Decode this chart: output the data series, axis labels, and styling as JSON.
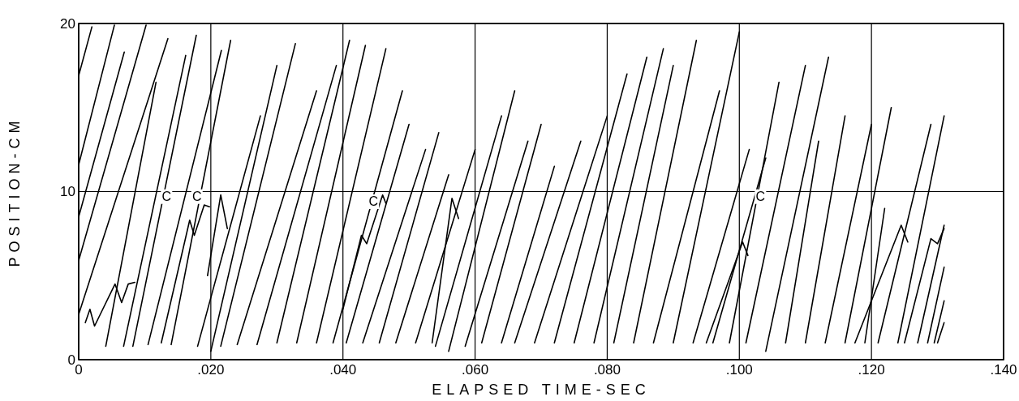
{
  "chart_data": {
    "type": "line",
    "xlabel": "ELAPSED TIME-SEC",
    "ylabel": "POSITION-CM",
    "xlim": [
      0,
      0.14
    ],
    "ylim": [
      0,
      20
    ],
    "xticks": [
      0,
      {
        "value": 0.02,
        "label": ".020"
      },
      {
        "value": 0.04,
        "label": ".040"
      },
      {
        "value": 0.06,
        "label": ".060"
      },
      {
        "value": 0.08,
        "label": ".080"
      },
      {
        "value": 0.1,
        "label": ".100"
      },
      {
        "value": 0.12,
        "label": ".120"
      },
      {
        "value": 0.14,
        "label": ".140"
      }
    ],
    "yticks": [
      0,
      10,
      20
    ],
    "grid": true,
    "marker": "none",
    "line_style": "solid",
    "annotations": [
      {
        "text": "C",
        "x": 0.0133,
        "y": 9.7
      },
      {
        "text": "C",
        "x": 0.0179,
        "y": 9.7
      },
      {
        "text": "C",
        "x": 0.0446,
        "y": 9.4
      },
      {
        "text": "C",
        "x": 0.1032,
        "y": 9.7
      }
    ],
    "series": [
      {
        "color": "#000000",
        "x": [
          0,
          0.002
        ],
        "values": [
          16.9,
          19.8
        ]
      },
      {
        "color": "#000000",
        "x": [
          0,
          0.0054
        ],
        "values": [
          11.6,
          19.9
        ]
      },
      {
        "color": "#000000",
        "x": [
          0,
          0.0069
        ],
        "values": [
          8.5,
          18.3
        ]
      },
      {
        "color": "#000000",
        "x": [
          0,
          0.0102
        ],
        "values": [
          5.9,
          19.9
        ]
      },
      {
        "color": "#000000",
        "x": [
          0,
          0.0135
        ],
        "values": [
          2.7,
          19.1
        ]
      },
      {
        "color": "#000000",
        "x": [
          0.0041,
          0.0117
        ],
        "values": [
          0.8,
          16.5
        ]
      },
      {
        "color": "#000000",
        "x": [
          0.0068,
          0.0162
        ],
        "values": [
          0.8,
          18.1
        ]
      },
      {
        "color": "#000000",
        "x": [
          0.0082,
          0.0178
        ],
        "values": [
          0.8,
          19.3
        ]
      },
      {
        "color": "#000000",
        "x": [
          0.0105,
          0.0216
        ],
        "values": [
          0.9,
          18.4
        ]
      },
      {
        "color": "#000000",
        "x": [
          0.014,
          0.023
        ],
        "values": [
          0.9,
          19
        ]
      },
      {
        "color": "#000000",
        "x": [
          0.018,
          0.0275
        ],
        "values": [
          0.8,
          14.5
        ]
      },
      {
        "color": "#000000",
        "x": [
          0.02,
          0.03
        ],
        "values": [
          0.5,
          17.5
        ]
      },
      {
        "color": "#000000",
        "x": [
          0.0215,
          0.0328
        ],
        "values": [
          0.8,
          18.8
        ]
      },
      {
        "color": "#000000",
        "x": [
          0.024,
          0.036
        ],
        "values": [
          0.9,
          16
        ]
      },
      {
        "color": "#000000",
        "x": [
          0.027,
          0.039
        ],
        "values": [
          0.9,
          17.5
        ]
      },
      {
        "color": "#000000",
        "x": [
          0.03,
          0.041
        ],
        "values": [
          1,
          19
        ]
      },
      {
        "color": "#000000",
        "x": [
          0.033,
          0.0434
        ],
        "values": [
          1,
          18.7
        ]
      },
      {
        "color": "#000000",
        "x": [
          0.036,
          0.0465
        ],
        "values": [
          1,
          18.5
        ]
      },
      {
        "color": "#000000",
        "x": [
          0.0385,
          0.049
        ],
        "values": [
          1,
          16
        ]
      },
      {
        "color": "#000000",
        "x": [
          0.0405,
          0.05
        ],
        "values": [
          1,
          14
        ]
      },
      {
        "color": "#000000",
        "x": [
          0.043,
          0.0525
        ],
        "values": [
          1,
          12.5
        ]
      },
      {
        "color": "#000000",
        "x": [
          0.0455,
          0.0545
        ],
        "values": [
          1,
          13.5
        ]
      },
      {
        "color": "#000000",
        "x": [
          0.048,
          0.056
        ],
        "values": [
          1,
          11
        ]
      },
      {
        "color": "#000000",
        "x": [
          0.051,
          0.06
        ],
        "values": [
          1,
          12.5
        ]
      },
      {
        "color": "#000000",
        "x": [
          0.054,
          0.064
        ],
        "values": [
          0.8,
          14.5
        ]
      },
      {
        "color": "#000000",
        "x": [
          0.056,
          0.066
        ],
        "values": [
          0.5,
          16
        ]
      },
      {
        "color": "#000000",
        "x": [
          0.0585,
          0.068
        ],
        "values": [
          0.8,
          13
        ]
      },
      {
        "color": "#000000",
        "x": [
          0.061,
          0.07
        ],
        "values": [
          1,
          14
        ]
      },
      {
        "color": "#000000",
        "x": [
          0.064,
          0.072
        ],
        "values": [
          1,
          11.5
        ]
      },
      {
        "color": "#000000",
        "x": [
          0.066,
          0.076
        ],
        "values": [
          1,
          13
        ]
      },
      {
        "color": "#000000",
        "x": [
          0.069,
          0.08
        ],
        "values": [
          1,
          14.5
        ]
      },
      {
        "color": "#000000",
        "x": [
          0.072,
          0.083
        ],
        "values": [
          1,
          17
        ]
      },
      {
        "color": "#000000",
        "x": [
          0.075,
          0.086
        ],
        "values": [
          1,
          18
        ]
      },
      {
        "color": "#000000",
        "x": [
          0.078,
          0.0885
        ],
        "values": [
          1,
          18.5
        ]
      },
      {
        "color": "#000000",
        "x": [
          0.081,
          0.09
        ],
        "values": [
          1,
          17.5
        ]
      },
      {
        "color": "#000000",
        "x": [
          0.084,
          0.0935
        ],
        "values": [
          1,
          19
        ]
      },
      {
        "color": "#000000",
        "x": [
          0.087,
          0.097
        ],
        "values": [
          1,
          16
        ]
      },
      {
        "color": "#000000",
        "x": [
          0.09,
          0.1
        ],
        "values": [
          1,
          19.5
        ]
      },
      {
        "color": "#000000",
        "x": [
          0.093,
          0.1015
        ],
        "values": [
          1,
          12.5
        ]
      },
      {
        "color": "#000000",
        "x": [
          0.096,
          0.104
        ],
        "values": [
          1,
          12
        ]
      },
      {
        "color": "#000000",
        "x": [
          0.0985,
          0.106
        ],
        "values": [
          1,
          16.5
        ]
      },
      {
        "color": "#000000",
        "x": [
          0.101,
          0.11
        ],
        "values": [
          1,
          17.5
        ]
      },
      {
        "color": "#000000",
        "x": [
          0.104,
          0.1135
        ],
        "values": [
          0.5,
          18
        ]
      },
      {
        "color": "#000000",
        "x": [
          0.107,
          0.112
        ],
        "values": [
          1,
          13
        ]
      },
      {
        "color": "#000000",
        "x": [
          0.11,
          0.116
        ],
        "values": [
          1,
          14.5
        ]
      },
      {
        "color": "#000000",
        "x": [
          0.113,
          0.12
        ],
        "values": [
          1,
          14
        ]
      },
      {
        "color": "#000000",
        "x": [
          0.116,
          0.123
        ],
        "values": [
          1,
          15
        ]
      },
      {
        "color": "#000000",
        "x": [
          0.119,
          0.122
        ],
        "values": [
          1,
          9
        ]
      },
      {
        "color": "#000000",
        "x": [
          0.121,
          0.129
        ],
        "values": [
          1,
          14
        ]
      },
      {
        "color": "#000000",
        "x": [
          0.124,
          0.131
        ],
        "values": [
          1,
          14.5
        ]
      },
      {
        "color": "#000000",
        "x": [
          0.127,
          0.131
        ],
        "values": [
          1,
          8
        ]
      },
      {
        "color": "#000000",
        "x": [
          0.1285,
          0.131
        ],
        "values": [
          1,
          5.5
        ]
      },
      {
        "color": "#000000",
        "x": [
          0.1295,
          0.131
        ],
        "values": [
          1,
          3.5
        ]
      },
      {
        "color": "#000000",
        "x": [
          0.13,
          0.131
        ],
        "values": [
          1,
          2.2
        ]
      },
      {
        "color": "#000000",
        "x": [
          0.001,
          0.0017,
          0.0024,
          0.0055,
          0.0065,
          0.0075,
          0.0085
        ],
        "values": [
          2.2,
          3,
          2,
          4.5,
          3.4,
          4.5,
          4.6
        ]
      },
      {
        "color": "#000000",
        "x": [
          0.0125,
          0.0168,
          0.0175,
          0.019,
          0.0198
        ],
        "values": [
          1,
          8.3,
          7.4,
          9.2,
          9.1
        ]
      },
      {
        "color": "#000000",
        "x": [
          0.0195,
          0.0215,
          0.0225
        ],
        "values": [
          5,
          9.8,
          7.8
        ]
      },
      {
        "color": "#000000",
        "x": [
          0.04,
          0.0428,
          0.0436,
          0.046,
          0.0465
        ],
        "values": [
          3,
          7.4,
          6.9,
          9.8,
          9.3
        ]
      },
      {
        "color": "#000000",
        "x": [
          0.0535,
          0.0565,
          0.0575
        ],
        "values": [
          1,
          9.6,
          8.4
        ]
      },
      {
        "color": "#000000",
        "x": [
          0.095,
          0.1005,
          0.1013
        ],
        "values": [
          1,
          7,
          6.2
        ]
      },
      {
        "color": "#000000",
        "x": [
          0.1175,
          0.1245,
          0.1255
        ],
        "values": [
          1,
          8,
          7
        ]
      },
      {
        "color": "#000000",
        "x": [
          0.125,
          0.129,
          0.13,
          0.131
        ],
        "values": [
          1,
          7.2,
          6.9,
          7.8
        ]
      }
    ]
  }
}
